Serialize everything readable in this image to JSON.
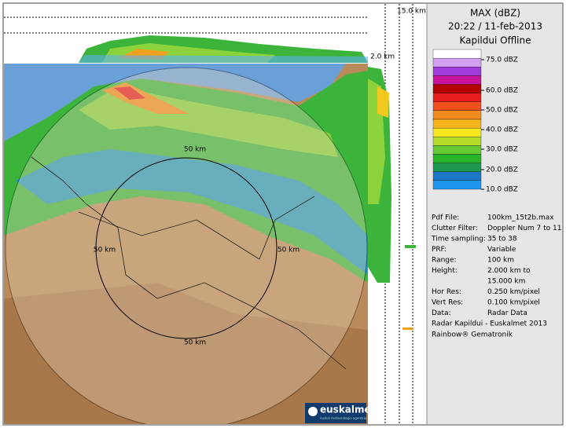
{
  "header": {
    "top_height": "15.0 km",
    "bottom_height": "2.0 km"
  },
  "map": {
    "ring_labels": [
      "50 km",
      "50 km",
      "50 km",
      "50 km"
    ],
    "logo": "euskalmet",
    "logo_sub": "euskal meteorologia agentzia"
  },
  "panel": {
    "title": "MAX (dBZ)",
    "datetime": "20:22 / 11-feb-2013",
    "status": "Kapildui Offline",
    "legend": [
      "75.0 dBZ",
      "60.0 dBZ",
      "50.0 dBZ",
      "40.0 dBZ",
      "30.0 dBZ",
      "20.0 dBZ",
      "10.0 dBZ"
    ],
    "info": [
      [
        "Pdf File:",
        "100km_15t2b.max"
      ],
      [
        "Clutter Filter:",
        "Doppler Num 7 to 11"
      ],
      [
        "Time sampling:",
        "35 to 38"
      ],
      [
        "PRF:",
        "Variable"
      ],
      [
        "Range:",
        "100 km"
      ],
      [
        "Height:",
        "2.000 km to",
        "15.000 km"
      ],
      [
        "Hor Res:",
        "0.250 km/pixel"
      ],
      [
        "Vert Res:",
        "0.100 km/pixel"
      ],
      [
        "Data:",
        "Radar Data"
      ]
    ],
    "credits": [
      "Radar Kapildui - Euskalmet 2013",
      "Rainbow® Gematronik"
    ]
  }
}
